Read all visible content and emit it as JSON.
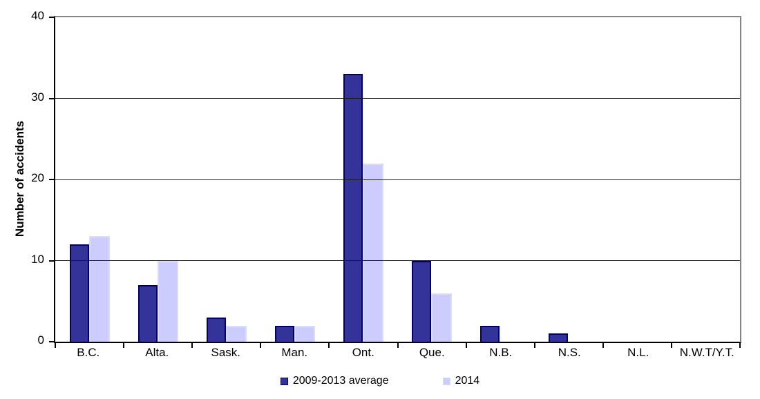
{
  "chart_data": {
    "type": "bar",
    "title": "",
    "xlabel": "",
    "ylabel": "Number of accidents",
    "ylim": [
      0,
      40
    ],
    "yticks": [
      0,
      10,
      20,
      30,
      40
    ],
    "grid": "horizontal",
    "legend_position": "bottom-center",
    "categories": [
      "B.C.",
      "Alta.",
      "Sask.",
      "Man.",
      "Ont.",
      "Que.",
      "N.B.",
      "N.S.",
      "N.L.",
      "N.W.T/Y.T."
    ],
    "series": [
      {
        "name": "2009-2013 average",
        "fill_color": "#333399",
        "border_color": "#000066",
        "values": [
          12,
          7,
          3,
          2,
          33,
          10,
          2,
          1,
          0,
          0
        ]
      },
      {
        "name": "2014",
        "fill_color": "#ccccff",
        "border_color": "#dcdcf7",
        "values": [
          13,
          10,
          2,
          2,
          22,
          6,
          0,
          0,
          0,
          0
        ]
      }
    ]
  },
  "plot_style": {
    "axis_color": "#000000",
    "outer_border_color": "#848484",
    "gridline_color": "#1a1a1a",
    "background_color": "#ffffff"
  }
}
